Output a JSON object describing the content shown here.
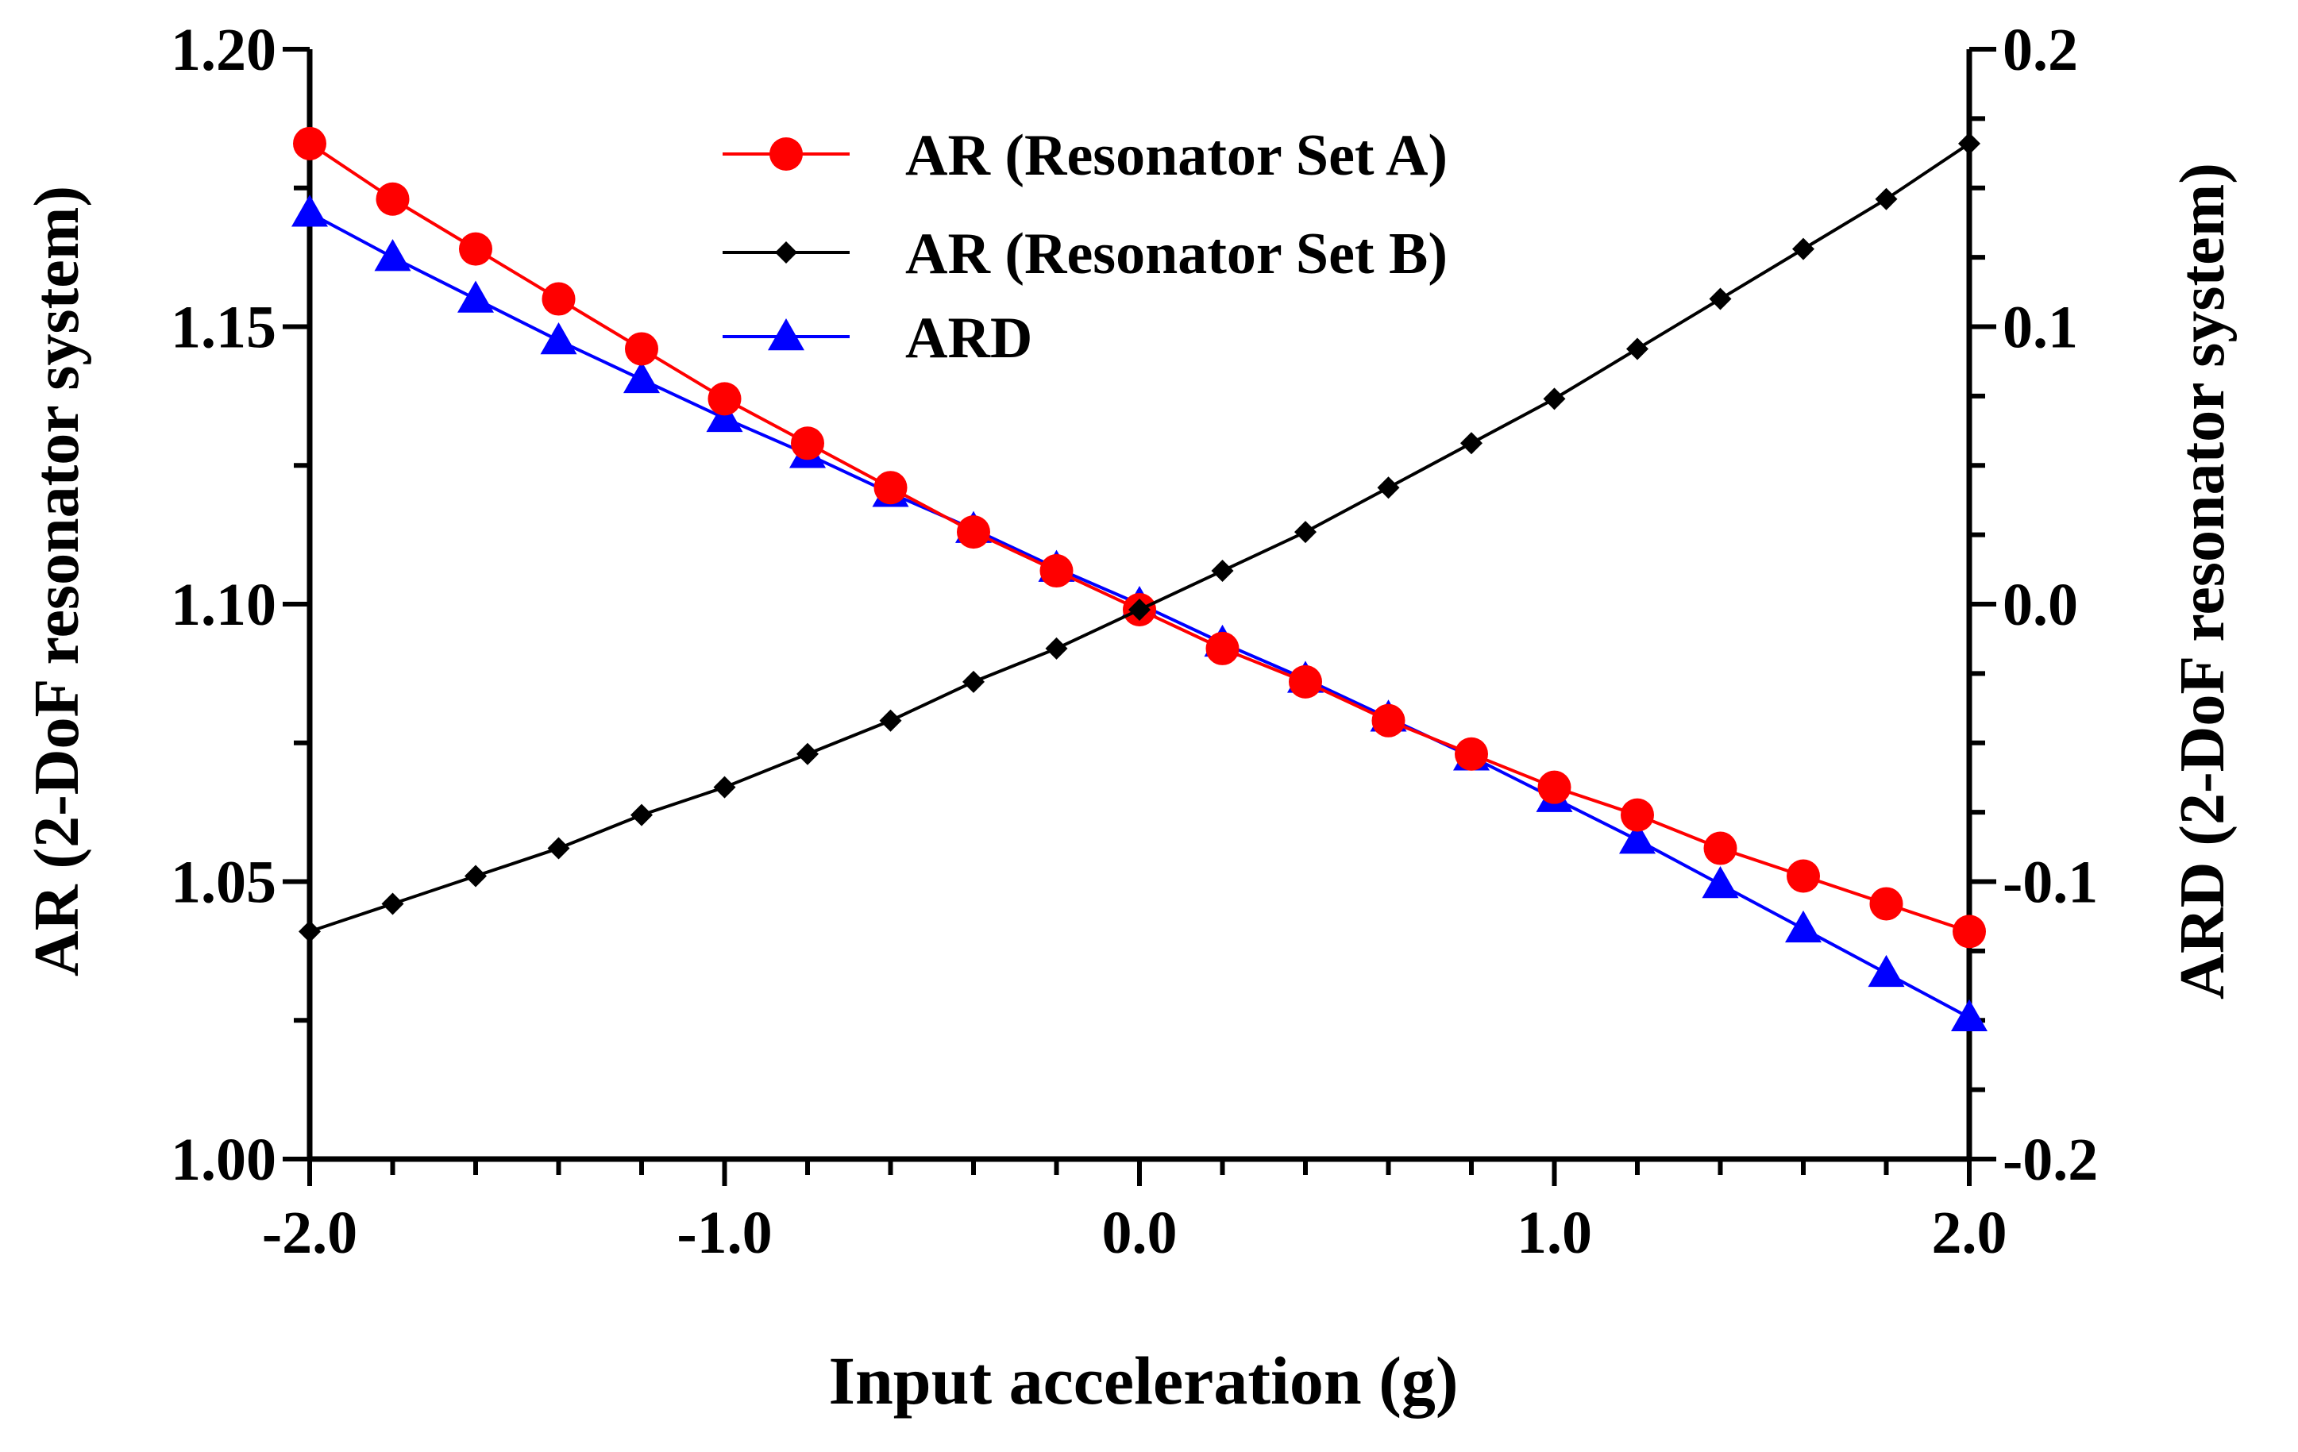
{
  "chart_data": {
    "type": "line",
    "title": "",
    "xlabel": "Input acceleration (g)",
    "ylabel": "AR (2-DoF resonator system)",
    "y2label": "ARD (2-DoF resonator system)",
    "xlim": [
      -2.0,
      2.0
    ],
    "ylim": [
      1.0,
      1.2
    ],
    "y2lim": [
      -0.2,
      0.2
    ],
    "x_ticks": [
      -2.0,
      -1.0,
      0.0,
      1.0,
      2.0
    ],
    "x_tick_labels": [
      "-2.0",
      "-1.0",
      "0.0",
      "1.0",
      "2.0"
    ],
    "y_ticks": [
      1.0,
      1.05,
      1.1,
      1.15,
      1.2
    ],
    "y_tick_labels": [
      "1.00",
      "1.05",
      "1.10",
      "1.15",
      "1.20"
    ],
    "y2_ticks": [
      -0.2,
      -0.1,
      0.0,
      0.1,
      0.2
    ],
    "y2_tick_labels": [
      "-0.2",
      "-0.1",
      "0.0",
      "0.1",
      "0.2"
    ],
    "grid": false,
    "legend_position": "top-center",
    "x": [
      -2.0,
      -1.8,
      -1.6,
      -1.4,
      -1.2,
      -1.0,
      -0.8,
      -0.6,
      -0.4,
      -0.2,
      0.0,
      0.2,
      0.4,
      0.6,
      0.8,
      1.0,
      1.2,
      1.4,
      1.6,
      1.8,
      2.0
    ],
    "series": [
      {
        "name": "AR (Resonator Set A)",
        "axis": "left",
        "color": "#ff0000",
        "marker": "circle",
        "values": [
          1.183,
          1.173,
          1.164,
          1.155,
          1.146,
          1.137,
          1.129,
          1.121,
          1.113,
          1.106,
          1.099,
          1.092,
          1.086,
          1.079,
          1.073,
          1.067,
          1.062,
          1.056,
          1.051,
          1.046,
          1.041
        ]
      },
      {
        "name": "AR (Resonator Set B)",
        "axis": "left",
        "color": "#000000",
        "marker": "diamond",
        "values": [
          1.041,
          1.046,
          1.051,
          1.056,
          1.062,
          1.067,
          1.073,
          1.079,
          1.086,
          1.092,
          1.099,
          1.106,
          1.113,
          1.121,
          1.129,
          1.137,
          1.146,
          1.155,
          1.164,
          1.173,
          1.183
        ]
      },
      {
        "name": "ARD",
        "axis": "right",
        "color": "#0000ff",
        "marker": "triangle",
        "values": [
          0.141,
          0.125,
          0.11,
          0.095,
          0.081,
          0.067,
          0.054,
          0.04,
          0.027,
          0.013,
          0.0,
          -0.014,
          -0.027,
          -0.041,
          -0.055,
          -0.07,
          -0.085,
          -0.101,
          -0.117,
          -0.133,
          -0.149
        ]
      }
    ]
  }
}
